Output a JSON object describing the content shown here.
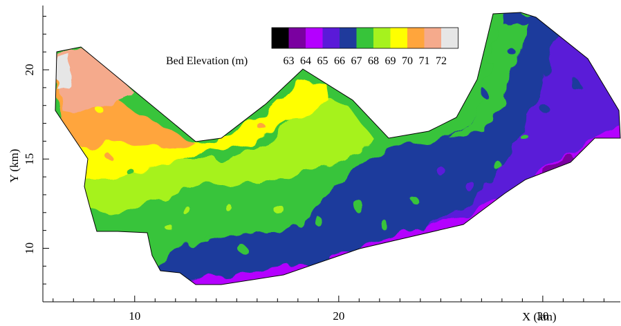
{
  "map": {
    "x_axis": {
      "label": "X (km)",
      "range": [
        5.5,
        33.8
      ],
      "ticks": [
        10,
        20,
        30
      ],
      "tick_labels": [
        "10",
        "20",
        "30"
      ]
    },
    "y_axis": {
      "label": "Y (km)",
      "range": [
        7.0,
        23.6
      ],
      "ticks": [
        10,
        15,
        20
      ],
      "tick_labels": [
        "10",
        "15",
        "20"
      ]
    },
    "legend": {
      "title": "Bed Elevation (m)",
      "placement": "top-center",
      "levels": [
        "63",
        "64",
        "65",
        "66",
        "67",
        "68",
        "69",
        "70",
        "71",
        "72"
      ],
      "colors": [
        "#000000",
        "#7a00a0",
        "#b400ff",
        "#5a1ad8",
        "#1f3a9c",
        "#37c43a",
        "#a6f21e",
        "#ffff00",
        "#ffa53c",
        "#f5aa8c",
        "#e6e6e6"
      ]
    }
  }
}
